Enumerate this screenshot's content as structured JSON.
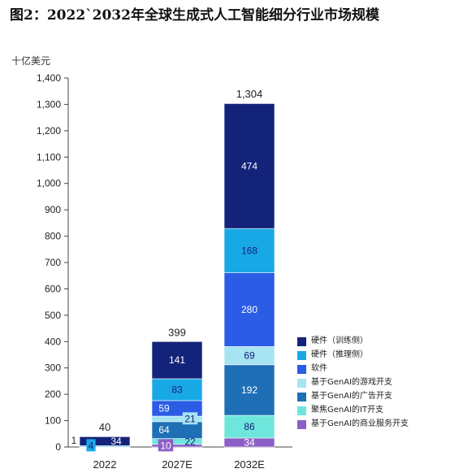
{
  "title": "图2：2022`2032年全球生成式人工智能细分行业市场规模",
  "chart_data": {
    "type": "bar",
    "stacked": true,
    "unit_label": "十亿美元",
    "categories": [
      "2022",
      "2027E",
      "2032E"
    ],
    "totals": [
      40,
      399,
      1304
    ],
    "ylim": [
      0,
      1400
    ],
    "yticks": [
      0,
      100,
      200,
      300,
      400,
      500,
      600,
      700,
      800,
      900,
      1000,
      1100,
      1200,
      1300,
      1400
    ],
    "ytick_labels": [
      "0",
      "100",
      "200",
      "300",
      "400",
      "500",
      "600",
      "700",
      "800",
      "900",
      "1,000",
      "1,100",
      "1,200",
      "1,300",
      "1,400"
    ],
    "total_labels": [
      "40",
      "399",
      "1,304"
    ],
    "legend_position": "right",
    "series": [
      {
        "name": "基于GenAI的商业服务开支",
        "color": "#8e5ec7",
        "values": [
          null,
          10,
          34
        ],
        "labels": [
          "",
          "10",
          "34"
        ]
      },
      {
        "name": "聚焦GenAI的IT开支",
        "color": "#6fe6dc",
        "values": [
          null,
          22,
          86
        ],
        "labels": [
          "",
          "22",
          "86"
        ]
      },
      {
        "name": "基于GenAI的广告开支",
        "color": "#1e6fb5",
        "values": [
          null,
          64,
          192
        ],
        "labels": [
          "",
          "64",
          "192"
        ]
      },
      {
        "name": "基于GenAI的游戏开支",
        "color": "#a6e4f2",
        "values": [
          null,
          21,
          69
        ],
        "labels": [
          "",
          "21",
          "69"
        ]
      },
      {
        "name": "软件",
        "color": "#2b5ce6",
        "values": [
          1,
          59,
          280
        ],
        "labels": [
          "1",
          "59",
          "280"
        ]
      },
      {
        "name": "硬件（推理侧）",
        "color": "#19a8e6",
        "values": [
          4,
          83,
          168
        ],
        "labels": [
          "4",
          "83",
          "168"
        ]
      },
      {
        "name": "硬件（训练侧）",
        "color": "#14237a",
        "values": [
          34,
          141,
          474
        ],
        "labels": [
          "34",
          "141",
          "474"
        ]
      }
    ],
    "legend_order": [
      "硬件（训练侧）",
      "硬件（推理侧）",
      "软件",
      "基于GenAI的游戏开支",
      "基于GenAI的广告开支",
      "聚焦GenAI的IT开支",
      "基于GenAI的商业服务开支"
    ]
  }
}
